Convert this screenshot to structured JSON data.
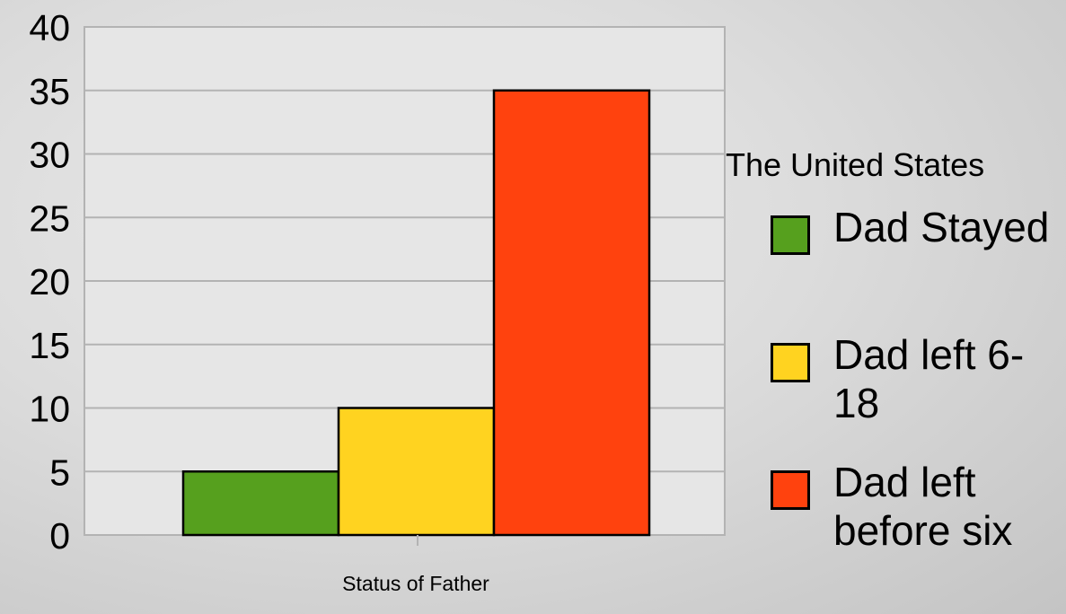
{
  "chart_data": {
    "type": "bar",
    "title": "The United States",
    "xlabel": "Status of Father",
    "ylabel": "",
    "categories": [
      "Status of Father"
    ],
    "series": [
      {
        "name": "Dad Stayed",
        "values": [
          5
        ],
        "color": "#56a01e"
      },
      {
        "name": "Dad left 6-18",
        "values": [
          10
        ],
        "color": "#ffd320"
      },
      {
        "name": "Dad left before six",
        "values": [
          35
        ],
        "color": "#ff420e"
      }
    ],
    "ylim": [
      0,
      40
    ],
    "yticks": [
      "0",
      "5",
      "10",
      "15",
      "20",
      "25",
      "30",
      "35",
      "40"
    ],
    "grid": true,
    "legend_position": "right"
  }
}
